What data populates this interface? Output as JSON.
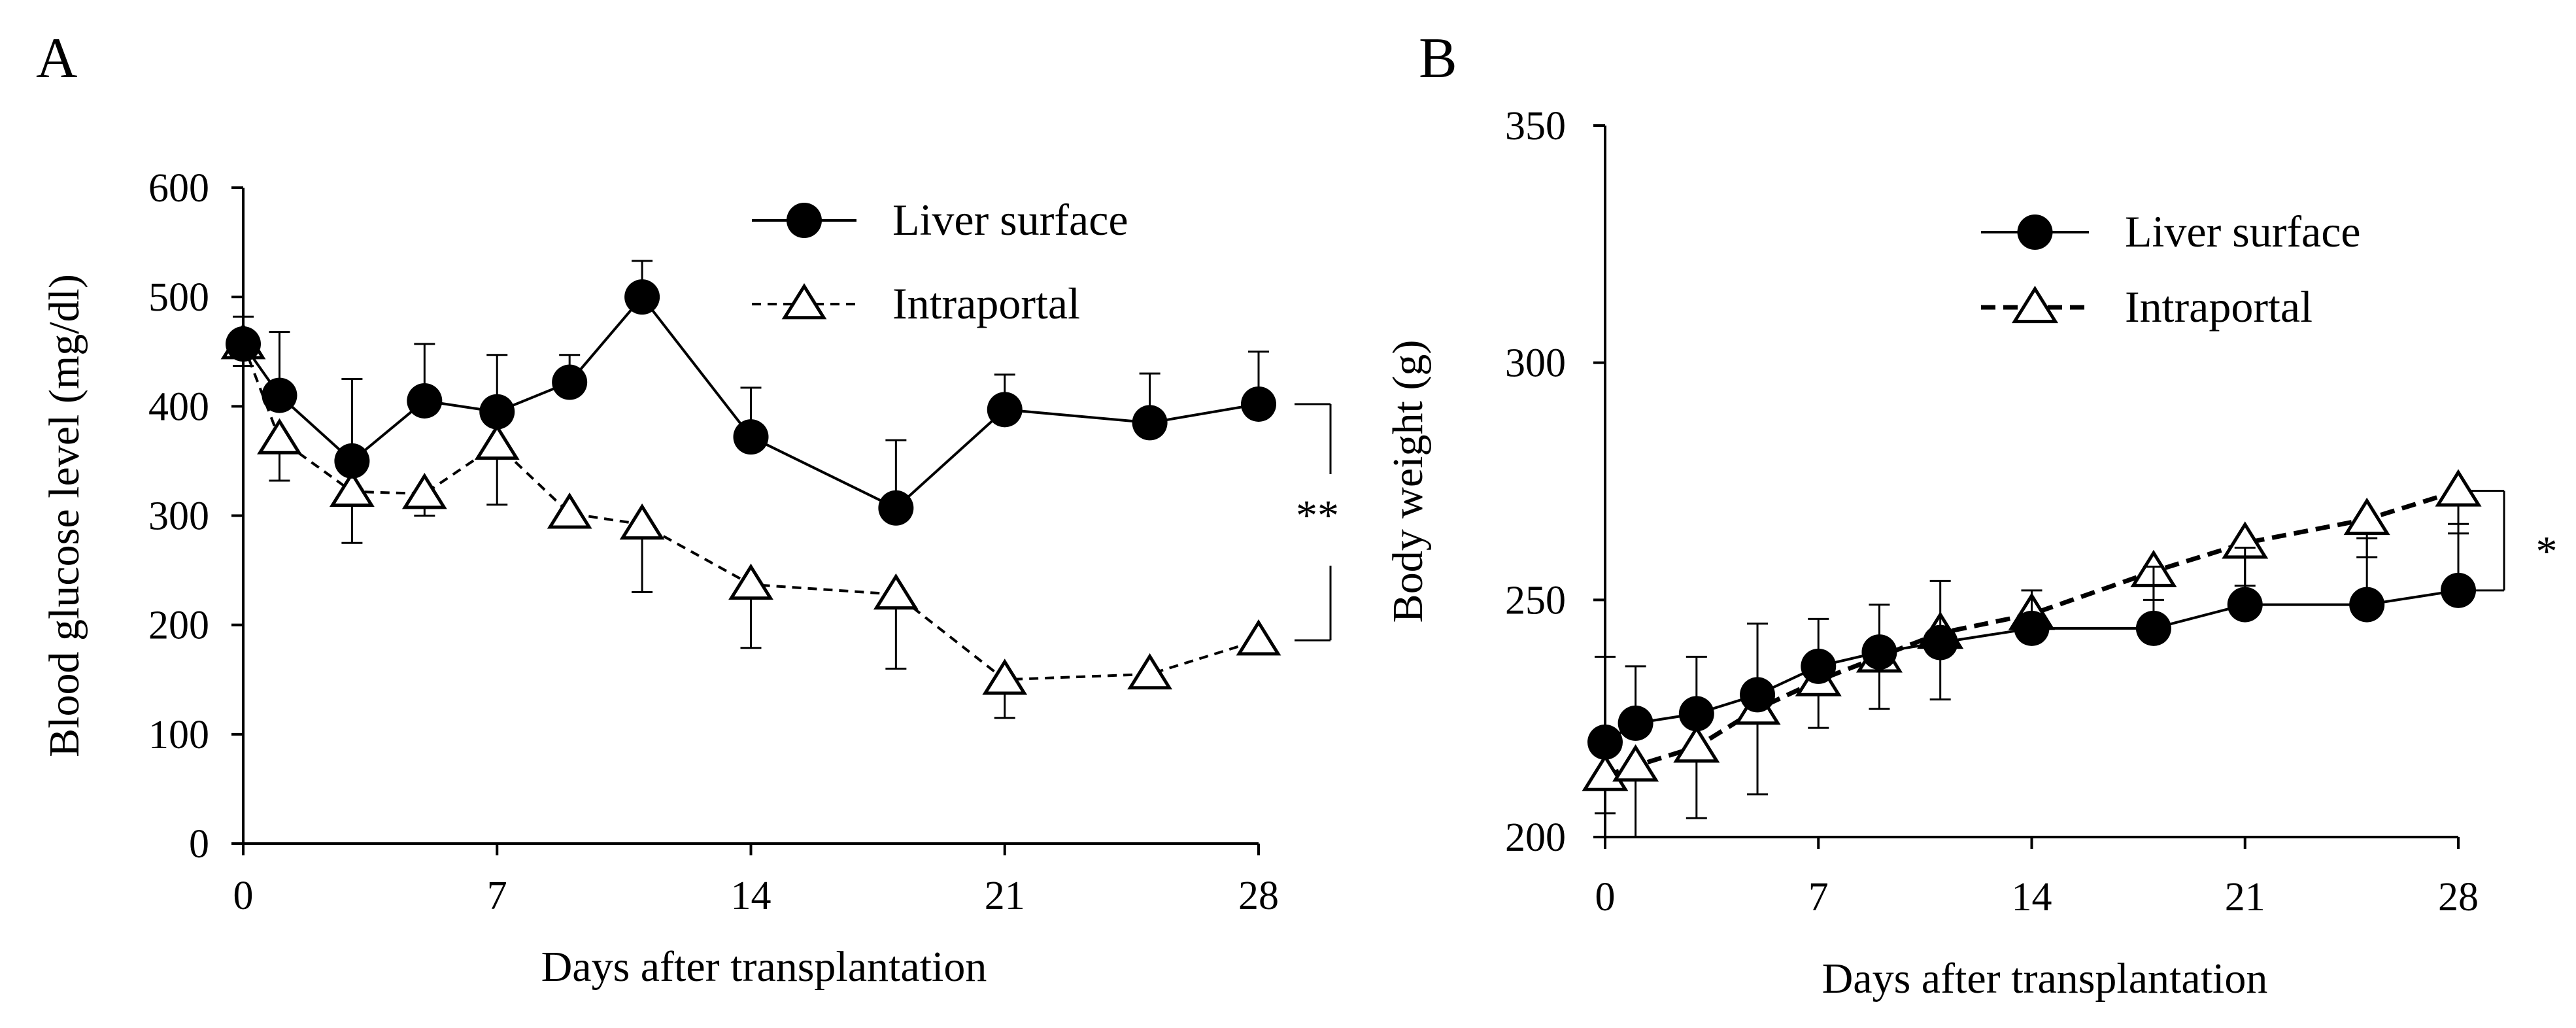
{
  "chart_data": [
    {
      "panel": "A",
      "type": "line",
      "title": "",
      "xlabel": "Days after transplantation",
      "ylabel": "Blood glucose level (mg/dl)",
      "xlim": [
        0,
        28
      ],
      "ylim": [
        0,
        600
      ],
      "xticks": [
        0,
        7,
        14,
        21,
        28
      ],
      "yticks": [
        0,
        100,
        200,
        300,
        400,
        500,
        600
      ],
      "grid": false,
      "legend_position": "top-right",
      "significance": "**",
      "series": [
        {
          "name": "Liver surface",
          "marker": "filled-circle",
          "line": "solid",
          "x": [
            0,
            1,
            3,
            5,
            7,
            9,
            11,
            14,
            18,
            21,
            25,
            28
          ],
          "values": [
            457,
            410,
            350,
            405,
            395,
            422,
            500,
            372,
            307,
            397,
            385,
            402
          ],
          "error": [
            25,
            58,
            75,
            52,
            52,
            25,
            33,
            45,
            62,
            32,
            45,
            48
          ]
        },
        {
          "name": "Intraportal",
          "marker": "open-triangle",
          "line": "dashed",
          "x": [
            0,
            1,
            3,
            5,
            7,
            9,
            11,
            14,
            18,
            21,
            25,
            28
          ],
          "values": [
            457,
            370,
            322,
            320,
            365,
            302,
            292,
            237,
            228,
            150,
            155,
            186
          ],
          "error": [
            20,
            38,
            47,
            20,
            55,
            10,
            62,
            58,
            68,
            35,
            12,
            12
          ]
        }
      ]
    },
    {
      "panel": "B",
      "type": "line",
      "title": "",
      "xlabel": "Days after transplantation",
      "ylabel": "Body weight (g)",
      "xlim": [
        0,
        28
      ],
      "ylim": [
        200,
        350
      ],
      "xticks": [
        0,
        7,
        14,
        21,
        28
      ],
      "yticks": [
        200,
        250,
        300,
        350
      ],
      "grid": false,
      "legend_position": "top-right",
      "significance": "*",
      "series": [
        {
          "name": "Liver surface",
          "marker": "filled-circle",
          "line": "solid",
          "x": [
            0,
            1,
            3,
            5,
            7,
            9,
            11,
            14,
            18,
            21,
            25,
            28
          ],
          "values": [
            220,
            224,
            226,
            230,
            236,
            239,
            241,
            244,
            244,
            249,
            249,
            252
          ],
          "error": [
            18,
            12,
            12,
            15,
            10,
            10,
            13,
            8,
            13,
            12,
            14,
            14
          ]
        },
        {
          "name": "Intraportal",
          "marker": "open-triangle",
          "line": "dashed",
          "x": [
            0,
            1,
            3,
            5,
            7,
            9,
            11,
            14,
            18,
            21,
            25,
            28
          ],
          "values": [
            213,
            215,
            219,
            227,
            233,
            238,
            243,
            247,
            256,
            262,
            267,
            273
          ],
          "error": [
            8,
            15,
            15,
            18,
            10,
            11,
            14,
            5,
            6,
            9,
            8,
            9
          ]
        }
      ]
    }
  ]
}
